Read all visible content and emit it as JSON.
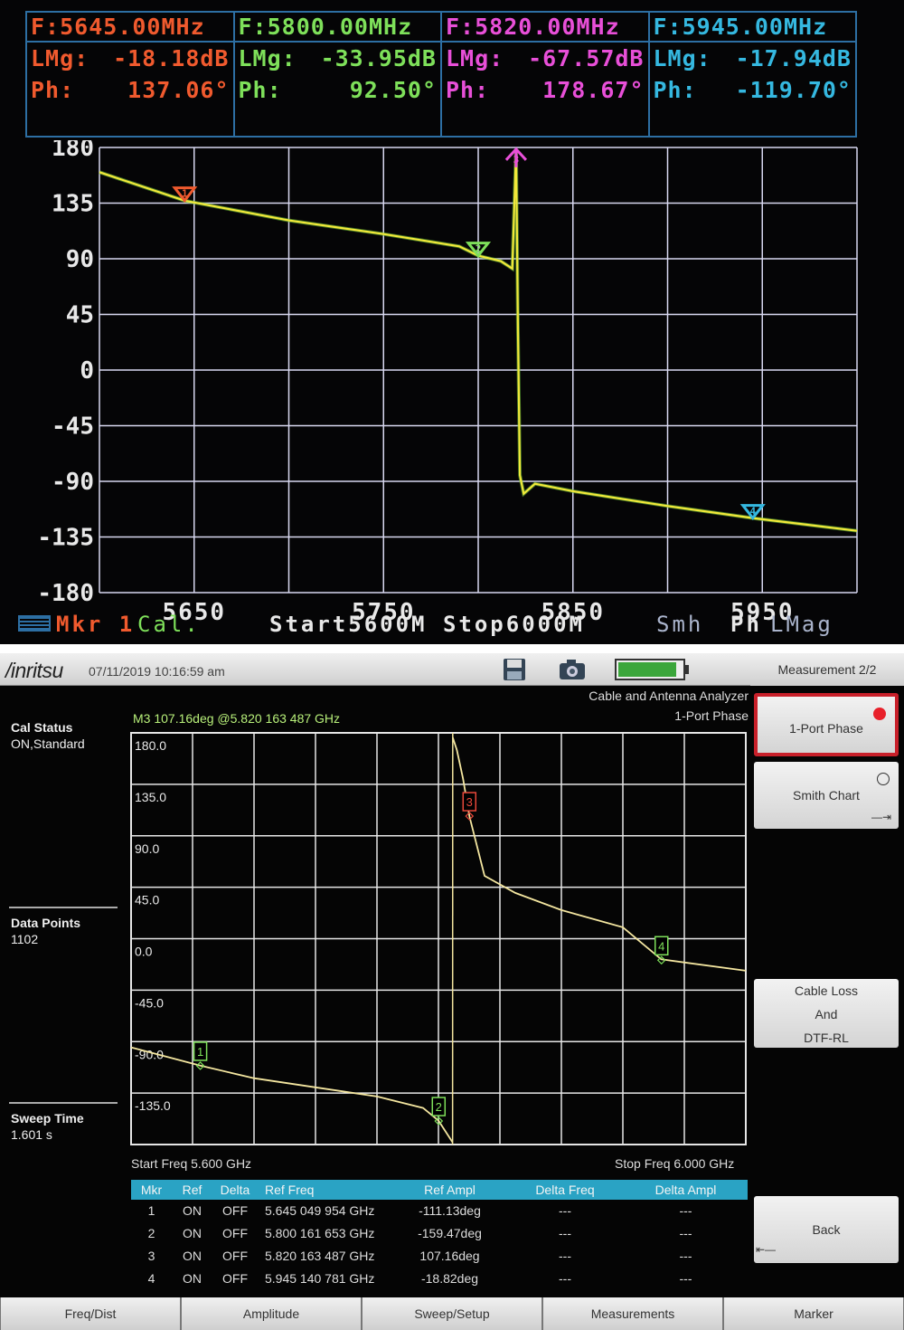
{
  "vna": {
    "markers": [
      {
        "freq": "F:5645.00MHz",
        "lmag_label": "LMg:",
        "lmag": "-18.18dB",
        "ph_label": "Ph:",
        "ph": "137.06°",
        "color": "#f05a2e"
      },
      {
        "freq": "F:5800.00MHz",
        "lmag_label": "LMg:",
        "lmag": "-33.95dB",
        "ph_label": "Ph:",
        "ph": "92.50°",
        "color": "#7ee05a"
      },
      {
        "freq": "F:5820.00MHz",
        "lmag_label": "LMg:",
        "lmag": "-67.57dB",
        "ph_label": "Ph:",
        "ph": "178.67°",
        "color": "#e84fd8"
      },
      {
        "freq": "F:5945.00MHz",
        "lmag_label": "LMg:",
        "lmag": "-17.94dB",
        "ph_label": "Ph:",
        "ph": "-119.70°",
        "color": "#35b8e0"
      }
    ],
    "footer": {
      "mkr": "Mkr 1",
      "cal": "Cal.",
      "start_stop": "Start5600M Stop6000M",
      "smh": "Smh",
      "ph": "Ph",
      "lmag": "LMag"
    },
    "colors": {
      "trace": "#f2e83a",
      "grid": "#d8d8f0",
      "axis_text": "#e8e8e8",
      "border": "#2d6fa3"
    }
  },
  "anritsu": {
    "header": {
      "logo": "/inritsu",
      "datetime": "07/11/2019 10:16:59 am",
      "mode": "Cable and Antenna Analyzer",
      "measurement": "1-Port Phase"
    },
    "side": {
      "cal_status_title": "Cal Status",
      "cal_status_value": "ON,Standard",
      "data_points_title": "Data Points",
      "data_points_value": "1102",
      "sweep_time_title": "Sweep Time",
      "sweep_time_value": "1.601 s"
    },
    "marker_readout": "M3 107.16deg @5.820 163 487 GHz",
    "start_freq": "Start Freq 5.600 GHz",
    "stop_freq": "Stop Freq 6.000 GHz",
    "table": {
      "headers": [
        "Mkr",
        "Ref",
        "Delta",
        "Ref Freq",
        "Ref Ampl",
        "Delta Freq",
        "Delta Ampl"
      ],
      "rows": [
        [
          "1",
          "ON",
          "OFF",
          "5.645 049 954 GHz",
          "-111.13deg",
          "---",
          "---"
        ],
        [
          "2",
          "ON",
          "OFF",
          "5.800 161 653 GHz",
          "-159.47deg",
          "---",
          "---"
        ],
        [
          "3",
          "ON",
          "OFF",
          "5.820 163 487 GHz",
          "107.16deg",
          "---",
          "---"
        ],
        [
          "4",
          "ON",
          "OFF",
          "5.945 140 781 GHz",
          "-18.82deg",
          "---",
          "---"
        ]
      ]
    },
    "menu": {
      "title": "Measurement 2/2",
      "items": [
        "1-Port Phase",
        "Smith Chart",
        "Cable Loss",
        "And",
        "DTF-RL",
        "Back"
      ]
    },
    "bottom": [
      "Freq/Dist",
      "Amplitude",
      "Sweep/Setup",
      "Measurements",
      "Marker"
    ],
    "colors": {
      "trace": "#f4e6a0",
      "grid": "#e6e6e6",
      "marker_green": "#7ee05a",
      "marker_red": "#e8483a",
      "table_header": "#2aa3c4",
      "selected": "#c8202a"
    }
  },
  "chart_data": [
    {
      "type": "line",
      "title": "",
      "xlabel": "",
      "ylabel": "",
      "xlim": [
        5600,
        6000
      ],
      "ylim": [
        -180,
        180
      ],
      "y_ticks": [
        180,
        135,
        90,
        45,
        0,
        -45,
        -90,
        -135,
        -180
      ],
      "x_tick_labels": [
        "5650",
        "5750",
        "5850",
        "5950"
      ],
      "x_tick_values": [
        5650,
        5750,
        5850,
        5950
      ],
      "series": [
        {
          "x": [
            5600,
            5645,
            5700,
            5750,
            5790,
            5800,
            5812,
            5818,
            5820,
            5821,
            5822,
            5824,
            5830,
            5850,
            5900,
            5945,
            6000
          ],
          "y": [
            160,
            137,
            121,
            110,
            100,
            92.5,
            88,
            82,
            178.67,
            30,
            -85,
            -100,
            -92,
            -98,
            -110,
            -119.7,
            -130
          ]
        }
      ],
      "markers": [
        {
          "label": "1",
          "x": 5645,
          "y": 137.06
        },
        {
          "label": "2",
          "x": 5800,
          "y": 92.5
        },
        {
          "label": "3",
          "x": 5820,
          "y": 178.67
        },
        {
          "label": "4",
          "x": 5945,
          "y": -119.7
        }
      ]
    },
    {
      "type": "line",
      "title": "",
      "xlabel": "",
      "ylabel": "",
      "xlim": [
        5.6,
        6.0
      ],
      "ylim": [
        -180,
        180
      ],
      "y_ticks": [
        180.0,
        135.0,
        90.0,
        45.0,
        0.0,
        -45.0,
        -90.0,
        -135.0
      ],
      "y_tick_labels": [
        "180.0",
        "135.0",
        "90.0",
        "45.0",
        "0.0",
        "-45.0",
        "-90.0",
        "-135.0"
      ],
      "series": [
        {
          "x": [
            5.6,
            5.645,
            5.68,
            5.72,
            5.76,
            5.79,
            5.8,
            5.8092,
            5.8093,
            5.812,
            5.816,
            5.8202,
            5.83,
            5.85,
            5.88,
            5.92,
            5.945,
            6.0
          ],
          "y": [
            -95,
            -111,
            -122,
            -130,
            -138,
            -148,
            -159,
            -178,
            176,
            165,
            140,
            107,
            55,
            40,
            25,
            10,
            -18,
            -28
          ]
        }
      ],
      "markers": [
        {
          "label": "1",
          "x": 5.645049954,
          "y": -111.13
        },
        {
          "label": "2",
          "x": 5.800161653,
          "y": -159.47
        },
        {
          "label": "3",
          "x": 5.820163487,
          "y": 107.16
        },
        {
          "label": "4",
          "x": 5.945140781,
          "y": -18.82
        }
      ]
    }
  ]
}
